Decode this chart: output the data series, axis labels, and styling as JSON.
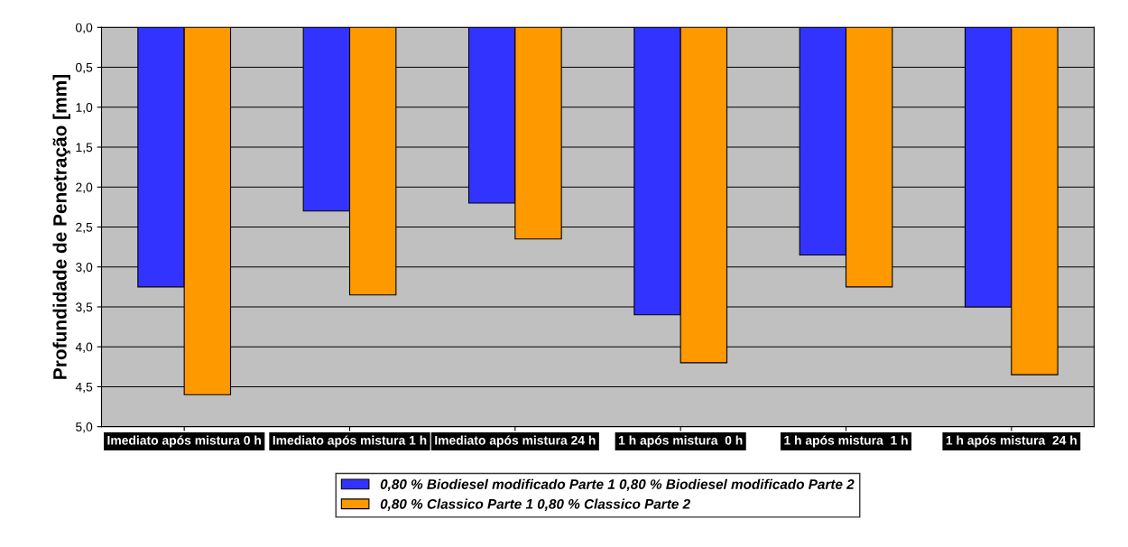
{
  "chart_data": {
    "type": "bar",
    "ylabel": "Profundidade de Penetração [mm]",
    "categories": [
      "Imediato após mistura 0 h",
      "Imediato após mistura 1 h",
      "Imediato após mistura 24 h",
      "1 h após mistura  0 h",
      "1 h após mistura  1 h",
      "1 h após mistura  24 h"
    ],
    "series": [
      {
        "name": "0,80 % Biodiesel modificado Parte 1 0,80 % Biodiesel modificado Parte 2",
        "color": "#3333ff",
        "values": [
          3.25,
          2.3,
          2.2,
          3.6,
          2.85,
          3.5
        ]
      },
      {
        "name": "0,80 % Classico Parte 1 0,80 % Classico Parte 2",
        "color": "#ff9900",
        "values": [
          4.6,
          3.35,
          2.65,
          4.2,
          3.25,
          4.35
        ]
      }
    ],
    "ylim": [
      5,
      0
    ],
    "yticks": [
      {
        "value": 0,
        "label": "0,0"
      },
      {
        "value": 0.5,
        "label": "0,5"
      },
      {
        "value": 1,
        "label": "1,0"
      },
      {
        "value": 1.5,
        "label": "1,5"
      },
      {
        "value": 2,
        "label": "2,0"
      },
      {
        "value": 2.5,
        "label": "2,5"
      },
      {
        "value": 3,
        "label": "3,0"
      },
      {
        "value": 3.5,
        "label": "3,5"
      },
      {
        "value": 4,
        "label": "4,0"
      },
      {
        "value": 4.5,
        "label": "4,5"
      },
      {
        "value": 5,
        "label": "5,0"
      }
    ],
    "grid": "y",
    "legend": "bottom"
  }
}
